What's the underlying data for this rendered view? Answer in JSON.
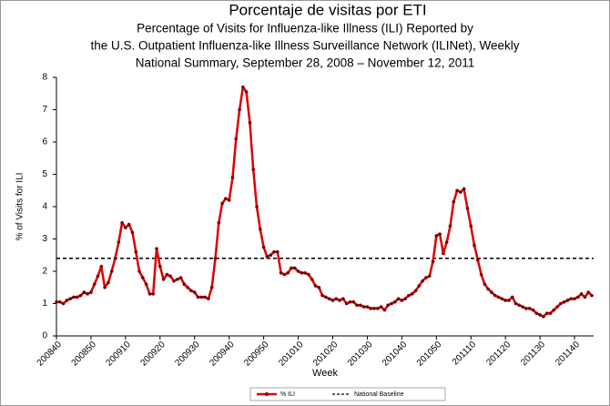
{
  "chart_data": {
    "type": "line",
    "title": "Porcentaje de visitas por ETI",
    "subtitle": [
      "Percentage of Visits for Influenza-like Illness (ILI) Reported by",
      "the U.S. Outpatient Influenza-like Illness Surveillance Network (ILINet), Weekly",
      "National Summary, September 28, 2008 – November 12, 2011"
    ],
    "x_label": "Week",
    "y_label": "% of Visits for ILI",
    "ylim": [
      0,
      8
    ],
    "yticks": [
      0,
      1,
      2,
      3,
      4,
      5,
      6,
      7,
      8
    ],
    "categories": [
      "200840",
      null,
      null,
      null,
      null,
      null,
      null,
      null,
      null,
      null,
      "200850",
      null,
      null,
      null,
      null,
      null,
      null,
      null,
      null,
      null,
      "200910",
      null,
      null,
      null,
      null,
      null,
      null,
      null,
      null,
      null,
      "200920",
      null,
      null,
      null,
      null,
      null,
      null,
      null,
      null,
      null,
      "200930",
      null,
      null,
      null,
      null,
      null,
      null,
      null,
      null,
      null,
      "200940",
      null,
      null,
      null,
      null,
      null,
      null,
      null,
      null,
      null,
      "200950",
      null,
      null,
      null,
      null,
      null,
      null,
      null,
      null,
      null,
      "201010",
      null,
      null,
      null,
      null,
      null,
      null,
      null,
      null,
      null,
      "201020",
      null,
      null,
      null,
      null,
      null,
      null,
      null,
      null,
      null,
      "201030",
      null,
      null,
      null,
      null,
      null,
      null,
      null,
      null,
      null,
      "201040",
      null,
      null,
      null,
      null,
      null,
      null,
      null,
      null,
      null,
      "201050",
      null,
      null,
      null,
      null,
      null,
      null,
      null,
      null,
      null,
      "201110",
      null,
      null,
      null,
      null,
      null,
      null,
      null,
      null,
      null,
      "201120",
      null,
      null,
      null,
      null,
      null,
      null,
      null,
      null,
      null,
      "201130",
      null,
      null,
      null,
      null,
      null,
      null,
      null,
      null,
      null,
      "201140",
      null,
      null,
      null,
      null,
      null
    ],
    "series": [
      {
        "name": "% ILI",
        "color": "#dd0000",
        "values": [
          1.05,
          1.05,
          1.0,
          1.1,
          1.15,
          1.2,
          1.2,
          1.25,
          1.35,
          1.3,
          1.35,
          1.6,
          1.85,
          2.15,
          1.5,
          1.65,
          2.0,
          2.4,
          2.9,
          3.5,
          3.35,
          3.45,
          3.2,
          2.6,
          2.0,
          1.8,
          1.6,
          1.3,
          1.3,
          2.7,
          2.15,
          1.75,
          1.9,
          1.85,
          1.7,
          1.75,
          1.8,
          1.6,
          1.5,
          1.4,
          1.35,
          1.2,
          1.2,
          1.2,
          1.15,
          1.5,
          2.4,
          3.5,
          4.1,
          4.25,
          4.2,
          4.9,
          6.1,
          7.0,
          7.7,
          7.55,
          6.6,
          5.15,
          4.0,
          3.3,
          2.75,
          2.45,
          2.5,
          2.6,
          2.6,
          1.95,
          1.9,
          1.95,
          2.1,
          2.1,
          2.0,
          1.95,
          1.95,
          1.9,
          1.75,
          1.55,
          1.5,
          1.25,
          1.2,
          1.15,
          1.1,
          1.15,
          1.1,
          1.15,
          1.0,
          1.05,
          1.05,
          0.95,
          0.95,
          0.9,
          0.9,
          0.85,
          0.85,
          0.85,
          0.9,
          0.8,
          0.95,
          1.0,
          1.05,
          1.15,
          1.1,
          1.15,
          1.25,
          1.3,
          1.4,
          1.55,
          1.7,
          1.8,
          1.85,
          2.3,
          3.1,
          3.15,
          2.55,
          2.9,
          3.4,
          4.15,
          4.5,
          4.45,
          4.55,
          3.95,
          3.4,
          2.8,
          2.35,
          1.9,
          1.6,
          1.45,
          1.35,
          1.25,
          1.2,
          1.15,
          1.1,
          1.1,
          1.2,
          1.0,
          0.95,
          0.9,
          0.85,
          0.85,
          0.8,
          0.7,
          0.65,
          0.6,
          0.7,
          0.7,
          0.8,
          0.9,
          1.0,
          1.05,
          1.1,
          1.15,
          1.15,
          1.2,
          1.3,
          1.2,
          1.35,
          1.25
        ]
      }
    ],
    "baseline": {
      "name": "National Baseline",
      "value": 2.4,
      "color": "#000000"
    }
  }
}
